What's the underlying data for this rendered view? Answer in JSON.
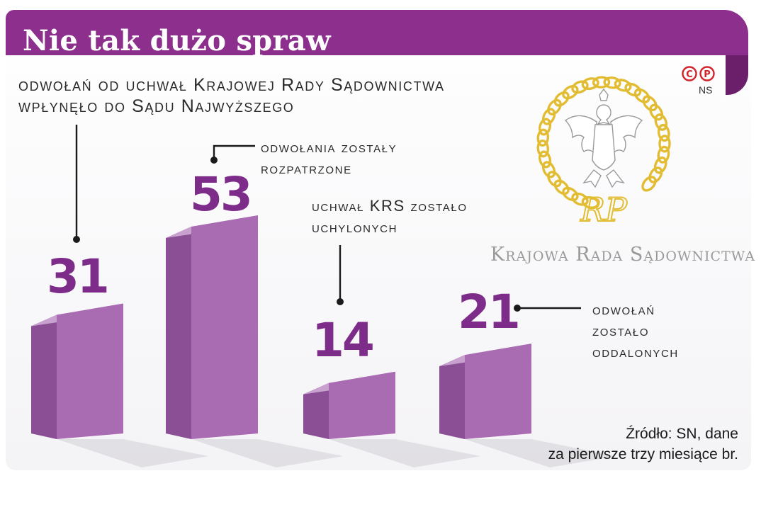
{
  "title": "Nie tak dużo spraw",
  "chart_data": {
    "type": "bar",
    "categories": [
      "odwołań od uchwał Krajowej Rady Sądownictwa wpłynęło do Sądu Najwyższego",
      "odwołania zostały rozpatrzone",
      "uchwał KRS zostało uchylonych",
      "odwołań zostało oddalonych"
    ],
    "values": [
      31,
      53,
      14,
      21
    ],
    "ylim": [
      0,
      53
    ]
  },
  "labels": {
    "received_line1": "odwołań od uchwał Krajowej Rady Sądownictwa",
    "received_line2": "wpłynęło do Sądu Najwyższego",
    "considered_line1": "odwołania zostały",
    "considered_line2": "rozpatrzone",
    "revoked_line1": "uchwał KRS zostało",
    "revoked_line2": "uchylonych",
    "dismissed_line1": "odwołań",
    "dismissed_line2": "zostało",
    "dismissed_line3": "oddalonych"
  },
  "logo": {
    "copyright": "©℗",
    "agency": "NS",
    "org_name": "Krajowa Rada Sądownictwa",
    "monogram": "RP"
  },
  "source": {
    "line1": "Źródło: SN, dane",
    "line2": "za pierwsze trzy miesiące br."
  },
  "colors": {
    "brand": "#8d2f8c",
    "bar_front": "#a96bb2",
    "bar_side": "#8a4f95",
    "bar_top": "#c9a1cf",
    "number": "#7e2c8a",
    "gold": "#e2bd33"
  }
}
